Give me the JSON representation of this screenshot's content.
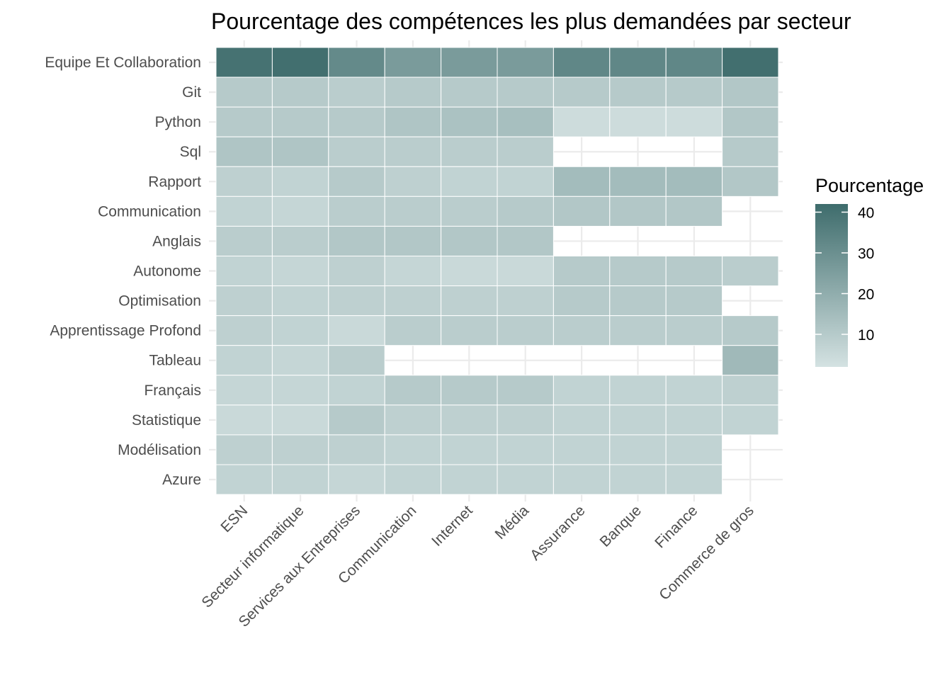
{
  "chart_data": {
    "type": "heatmap",
    "title": "Pourcentage des compétences les plus demandées par secteur",
    "xlabel": "",
    "ylabel": "",
    "x": [
      "ESN",
      "Secteur informatique",
      "Services aux Entreprises",
      "Communication",
      "Internet",
      "Média",
      "Assurance",
      "Banque",
      "Finance",
      "Commerce de gros"
    ],
    "y": [
      "Equipe Et Collaboration",
      "Git",
      "Python",
      "Sql",
      "Rapport",
      "Communication",
      "Anglais",
      "Autonome",
      "Optimisation",
      "Apprentissage Profond",
      "Tableau",
      "Français",
      "Statistique",
      "Modélisation",
      "Azure"
    ],
    "values": [
      [
        40,
        41,
        32,
        26,
        26,
        26,
        33,
        33,
        33,
        41
      ],
      [
        10,
        10,
        9,
        10,
        10,
        10,
        10,
        10,
        10,
        11
      ],
      [
        10,
        10,
        10,
        12,
        13,
        14,
        4,
        4,
        4,
        11
      ],
      [
        12,
        12,
        9,
        9,
        9,
        9,
        null,
        null,
        null,
        10
      ],
      [
        8,
        7,
        10,
        8,
        7,
        7,
        15,
        15,
        15,
        11
      ],
      [
        7,
        6,
        9,
        9,
        9,
        10,
        11,
        11,
        11,
        null
      ],
      [
        9,
        9,
        11,
        11,
        11,
        11,
        null,
        null,
        null,
        null
      ],
      [
        7,
        6,
        8,
        6,
        5,
        5,
        10,
        10,
        10,
        9
      ],
      [
        8,
        7,
        8,
        8,
        8,
        8,
        10,
        10,
        10,
        null
      ],
      [
        8,
        7,
        5,
        9,
        9,
        9,
        9,
        9,
        9,
        10
      ],
      [
        7,
        6,
        9,
        null,
        null,
        null,
        null,
        null,
        null,
        16
      ],
      [
        6,
        6,
        7,
        10,
        10,
        10,
        7,
        7,
        7,
        8
      ],
      [
        5,
        5,
        10,
        8,
        8,
        8,
        7,
        7,
        7,
        7
      ],
      [
        8,
        8,
        8,
        7,
        7,
        7,
        7,
        7,
        7,
        null
      ],
      [
        7,
        7,
        6,
        7,
        7,
        7,
        7,
        7,
        7,
        null
      ]
    ],
    "legend": {
      "title": "Pourcentage",
      "placement": "right",
      "ticks": [
        10,
        20,
        30,
        40
      ],
      "range": [
        2,
        42
      ],
      "color_low": "#d4e2e2",
      "color_high": "#3e6c6c"
    },
    "grid": true
  }
}
